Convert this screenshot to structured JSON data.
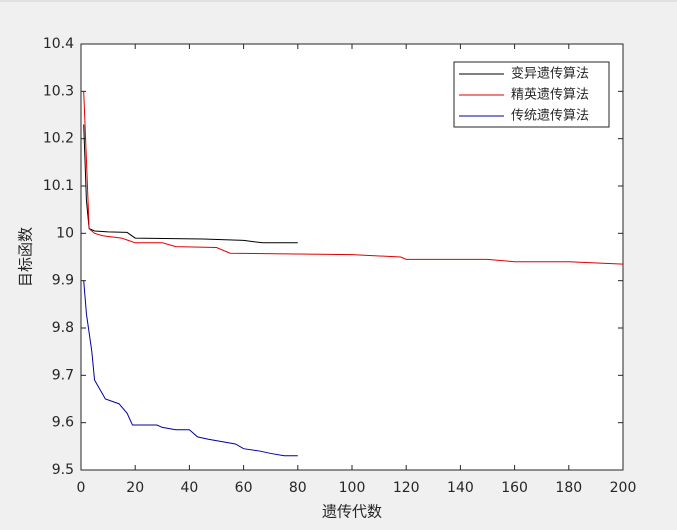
{
  "chart_data": {
    "type": "line",
    "xlabel": "遗传代数",
    "ylabel": "目标函数",
    "xlim": [
      0,
      200
    ],
    "ylim": [
      9.5,
      10.4
    ],
    "xticks": [
      0,
      20,
      40,
      60,
      80,
      100,
      120,
      140,
      160,
      180,
      200
    ],
    "yticks": [
      9.5,
      9.6,
      9.7,
      9.8,
      9.9,
      10,
      10.1,
      10.2,
      10.3,
      10.4
    ],
    "legend": "northeast",
    "series": [
      {
        "name": "变异遗传算法",
        "color": "#000000",
        "x": [
          1,
          2,
          3,
          5,
          10,
          17,
          20,
          45,
          60,
          67,
          80
        ],
        "values": [
          10.23,
          10.07,
          10.01,
          10.005,
          10.003,
          10.002,
          9.99,
          9.988,
          9.985,
          9.98,
          9.98
        ]
      },
      {
        "name": "精英遗传算法",
        "color": "#e00000",
        "x": [
          1,
          3,
          5,
          8,
          15,
          20,
          30,
          35,
          50,
          55,
          100,
          118,
          120,
          150,
          160,
          180,
          200
        ],
        "values": [
          10.3,
          10.01,
          10.0,
          9.995,
          9.99,
          9.98,
          9.98,
          9.972,
          9.97,
          9.958,
          9.955,
          9.95,
          9.945,
          9.945,
          9.94,
          9.94,
          9.935
        ]
      },
      {
        "name": "传统遗传算法",
        "color": "#0000a0",
        "x": [
          1,
          2,
          4,
          5,
          7,
          9,
          14,
          17,
          19,
          28,
          30,
          35,
          40,
          43,
          47,
          52,
          57,
          60,
          66,
          70,
          75,
          80
        ],
        "values": [
          9.9,
          9.83,
          9.75,
          9.69,
          9.67,
          9.65,
          9.64,
          9.62,
          9.595,
          9.595,
          9.59,
          9.585,
          9.585,
          9.57,
          9.565,
          9.56,
          9.555,
          9.545,
          9.54,
          9.535,
          9.53,
          9.53
        ]
      }
    ]
  }
}
